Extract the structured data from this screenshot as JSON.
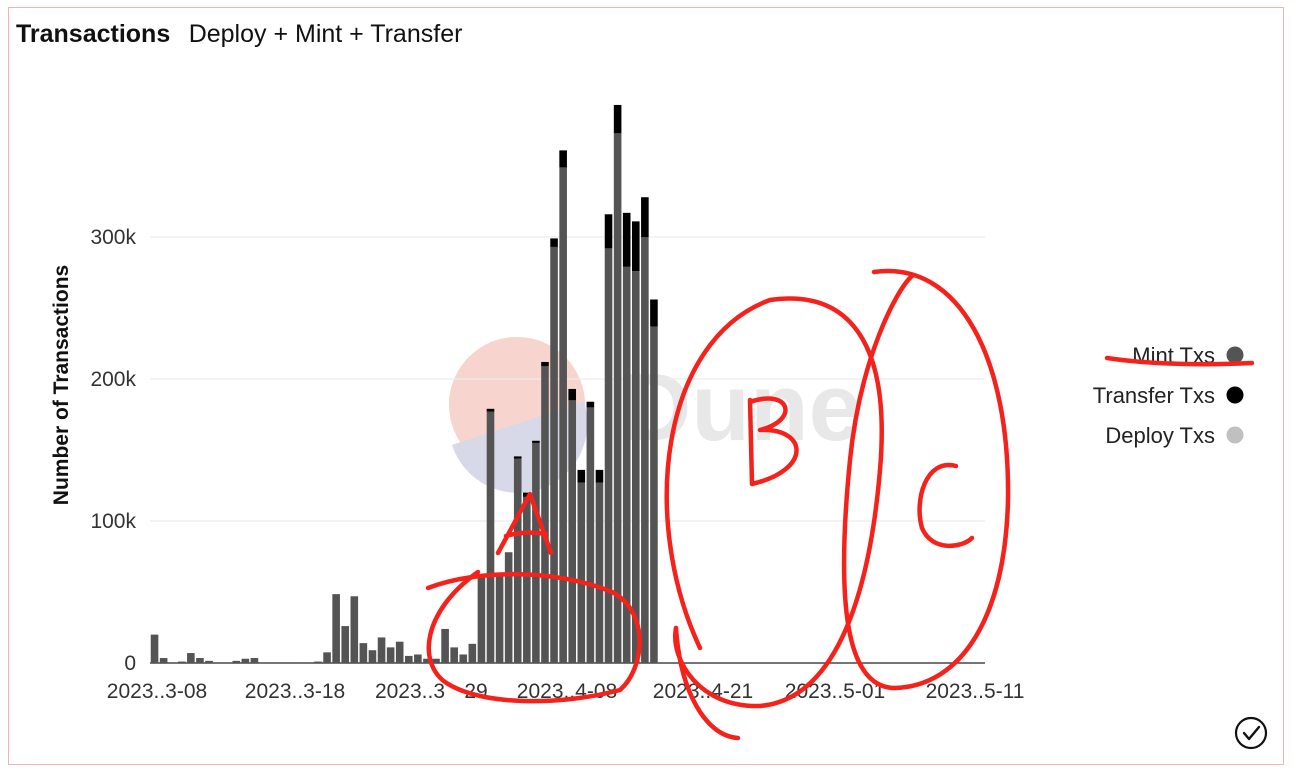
{
  "header": {
    "title": "Transactions",
    "subtitle": "Deploy + Mint + Transfer"
  },
  "watermark": "Dune",
  "annotations": [
    "A",
    "B",
    "C"
  ],
  "colors": {
    "mint": "#545454",
    "transfer": "#000000",
    "deploy": "#c0c0c0",
    "annotation": "#f5221b",
    "grid": "#ececec"
  },
  "chart_data": {
    "type": "bar",
    "stacked": true,
    "title": "Transactions",
    "subtitle": "Deploy + Mint + Transfer",
    "ylabel": "Number of Transactions",
    "xlabel": "",
    "ylim": [
      0,
      400000
    ],
    "yticks": [
      0,
      100000,
      200000,
      300000
    ],
    "ytick_labels": [
      "0",
      "100k",
      "200k",
      "300k"
    ],
    "xtick_labels": [
      "2023..3-08",
      "2023..3-18",
      "2023..3",
      "29",
      "2023..4-08",
      "2023..4-21",
      "2023..5-01",
      "2023..5-11"
    ],
    "grid": true,
    "legend_position": "right",
    "categories": [
      "2023-03-08",
      "2023-03-09",
      "2023-03-10",
      "2023-03-11",
      "2023-03-12",
      "2023-03-13",
      "2023-03-14",
      "2023-03-15",
      "2023-03-16",
      "2023-03-17",
      "2023-03-18",
      "2023-03-19",
      "2023-03-20",
      "2023-03-21",
      "2023-03-22",
      "2023-03-23",
      "2023-03-24",
      "2023-03-25",
      "2023-03-26",
      "2023-03-27",
      "2023-03-28",
      "2023-03-29",
      "2023-03-30",
      "2023-03-31",
      "2023-04-01",
      "2023-04-02",
      "2023-04-03",
      "2023-04-04",
      "2023-04-05",
      "2023-04-06",
      "2023-04-07",
      "2023-04-08",
      "2023-04-09",
      "2023-04-10",
      "2023-04-11",
      "2023-04-12",
      "2023-04-13",
      "2023-04-14",
      "2023-04-15",
      "2023-04-16",
      "2023-04-17",
      "2023-04-18",
      "2023-04-19",
      "2023-04-20",
      "2023-04-21",
      "2023-04-22",
      "2023-04-23",
      "2023-04-24",
      "2023-04-25",
      "2023-04-26",
      "2023-04-27",
      "2023-04-28",
      "2023-04-29",
      "2023-04-30",
      "2023-05-01",
      "2023-05-02",
      "2023-05-03",
      "2023-05-04",
      "2023-05-05",
      "2023-05-06",
      "2023-05-07",
      "2023-05-08",
      "2023-05-09",
      "2023-05-10",
      "2023-05-11"
    ],
    "series": [
      {
        "name": "Mint Txs",
        "color": "#545454",
        "values": [
          20000,
          3500,
          500,
          1000,
          7000,
          3500,
          1500,
          500,
          500,
          1500,
          3000,
          3500,
          500,
          500,
          500,
          500,
          500,
          500,
          1000,
          7500,
          48500,
          26000,
          47000,
          14000,
          9000,
          18000,
          11000,
          15000,
          5000,
          6000,
          3000,
          3000,
          24000,
          11000,
          6000,
          13500,
          62000,
          177000,
          61000,
          78000,
          144000,
          117000,
          155000,
          209000,
          293000,
          349000,
          185000,
          127000,
          180000,
          127000,
          292000,
          373000,
          279000,
          276000,
          300000,
          237000,
          0,
          0,
          0,
          0,
          0,
          0,
          0,
          0,
          0
        ]
      },
      {
        "name": "Transfer Txs",
        "color": "#000000",
        "values": [
          0,
          0,
          0,
          0,
          0,
          0,
          0,
          0,
          0,
          0,
          0,
          0,
          0,
          0,
          0,
          0,
          0,
          0,
          0,
          0,
          0,
          0,
          0,
          0,
          0,
          0,
          0,
          0,
          0,
          0,
          0,
          0,
          0,
          0,
          0,
          0,
          0,
          2000,
          0,
          0,
          1500,
          3000,
          1500,
          3000,
          6000,
          12000,
          8000,
          9000,
          4000,
          9000,
          24000,
          20000,
          38000,
          35000,
          28000,
          19000,
          0,
          0,
          0,
          0,
          0,
          0,
          0,
          0,
          0
        ]
      },
      {
        "name": "Deploy Txs",
        "color": "#c0c0c0",
        "values": [
          0,
          0,
          0,
          0,
          0,
          0,
          0,
          0,
          0,
          0,
          0,
          0,
          0,
          0,
          0,
          0,
          0,
          0,
          0,
          0,
          0,
          0,
          0,
          0,
          0,
          0,
          0,
          0,
          0,
          0,
          0,
          0,
          0,
          0,
          0,
          0,
          0,
          0,
          0,
          0,
          0,
          0,
          0,
          0,
          0,
          0,
          0,
          0,
          0,
          0,
          0,
          0,
          0,
          0,
          0,
          0,
          0,
          0,
          0,
          0,
          0,
          0,
          0,
          0,
          0
        ]
      }
    ]
  }
}
